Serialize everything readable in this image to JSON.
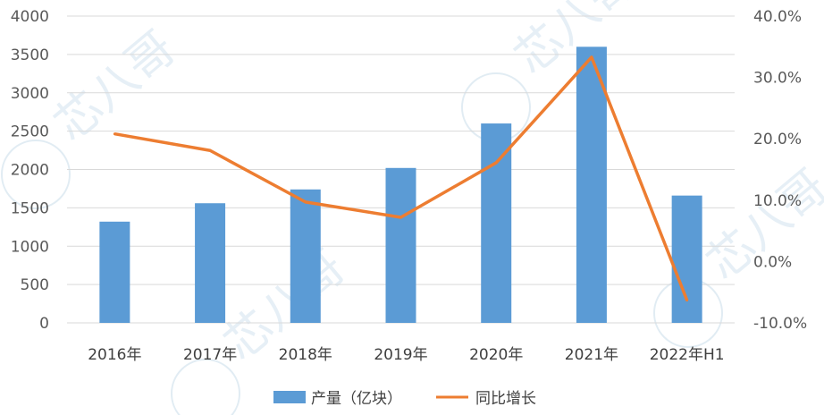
{
  "chart_data": {
    "type": "bar",
    "categories": [
      "2016年",
      "2017年",
      "2018年",
      "2019年",
      "2020年",
      "2021年",
      "2022年H1"
    ],
    "series": [
      {
        "name": "产量（亿块）",
        "type": "bar",
        "axis": "left",
        "color": "#5b9bd5",
        "values": [
          1320,
          1560,
          1740,
          2020,
          2600,
          3600,
          1660
        ]
      },
      {
        "name": "同比增长",
        "type": "line",
        "axis": "right",
        "color": "#ed7d31",
        "values": [
          20.8,
          18.1,
          9.7,
          7.2,
          16.1,
          33.3,
          -6.3
        ]
      }
    ],
    "y_left": {
      "ylim": [
        0,
        4000
      ],
      "ticks": [
        0,
        500,
        1000,
        1500,
        2000,
        2500,
        3000,
        3500,
        4000
      ],
      "tick_labels": [
        "0",
        "500",
        "1000",
        "1500",
        "2000",
        "2500",
        "3000",
        "3500",
        "4000"
      ]
    },
    "y_right": {
      "ylim": [
        -10,
        40
      ],
      "ticks": [
        -10,
        0,
        10,
        20,
        30,
        40
      ],
      "tick_labels": [
        "-10.0%",
        "0.0%",
        "10.0%",
        "20.0%",
        "30.0%",
        "40.0%"
      ]
    },
    "grid": true,
    "legend": "bottom-center",
    "watermark": "芯八哥"
  }
}
